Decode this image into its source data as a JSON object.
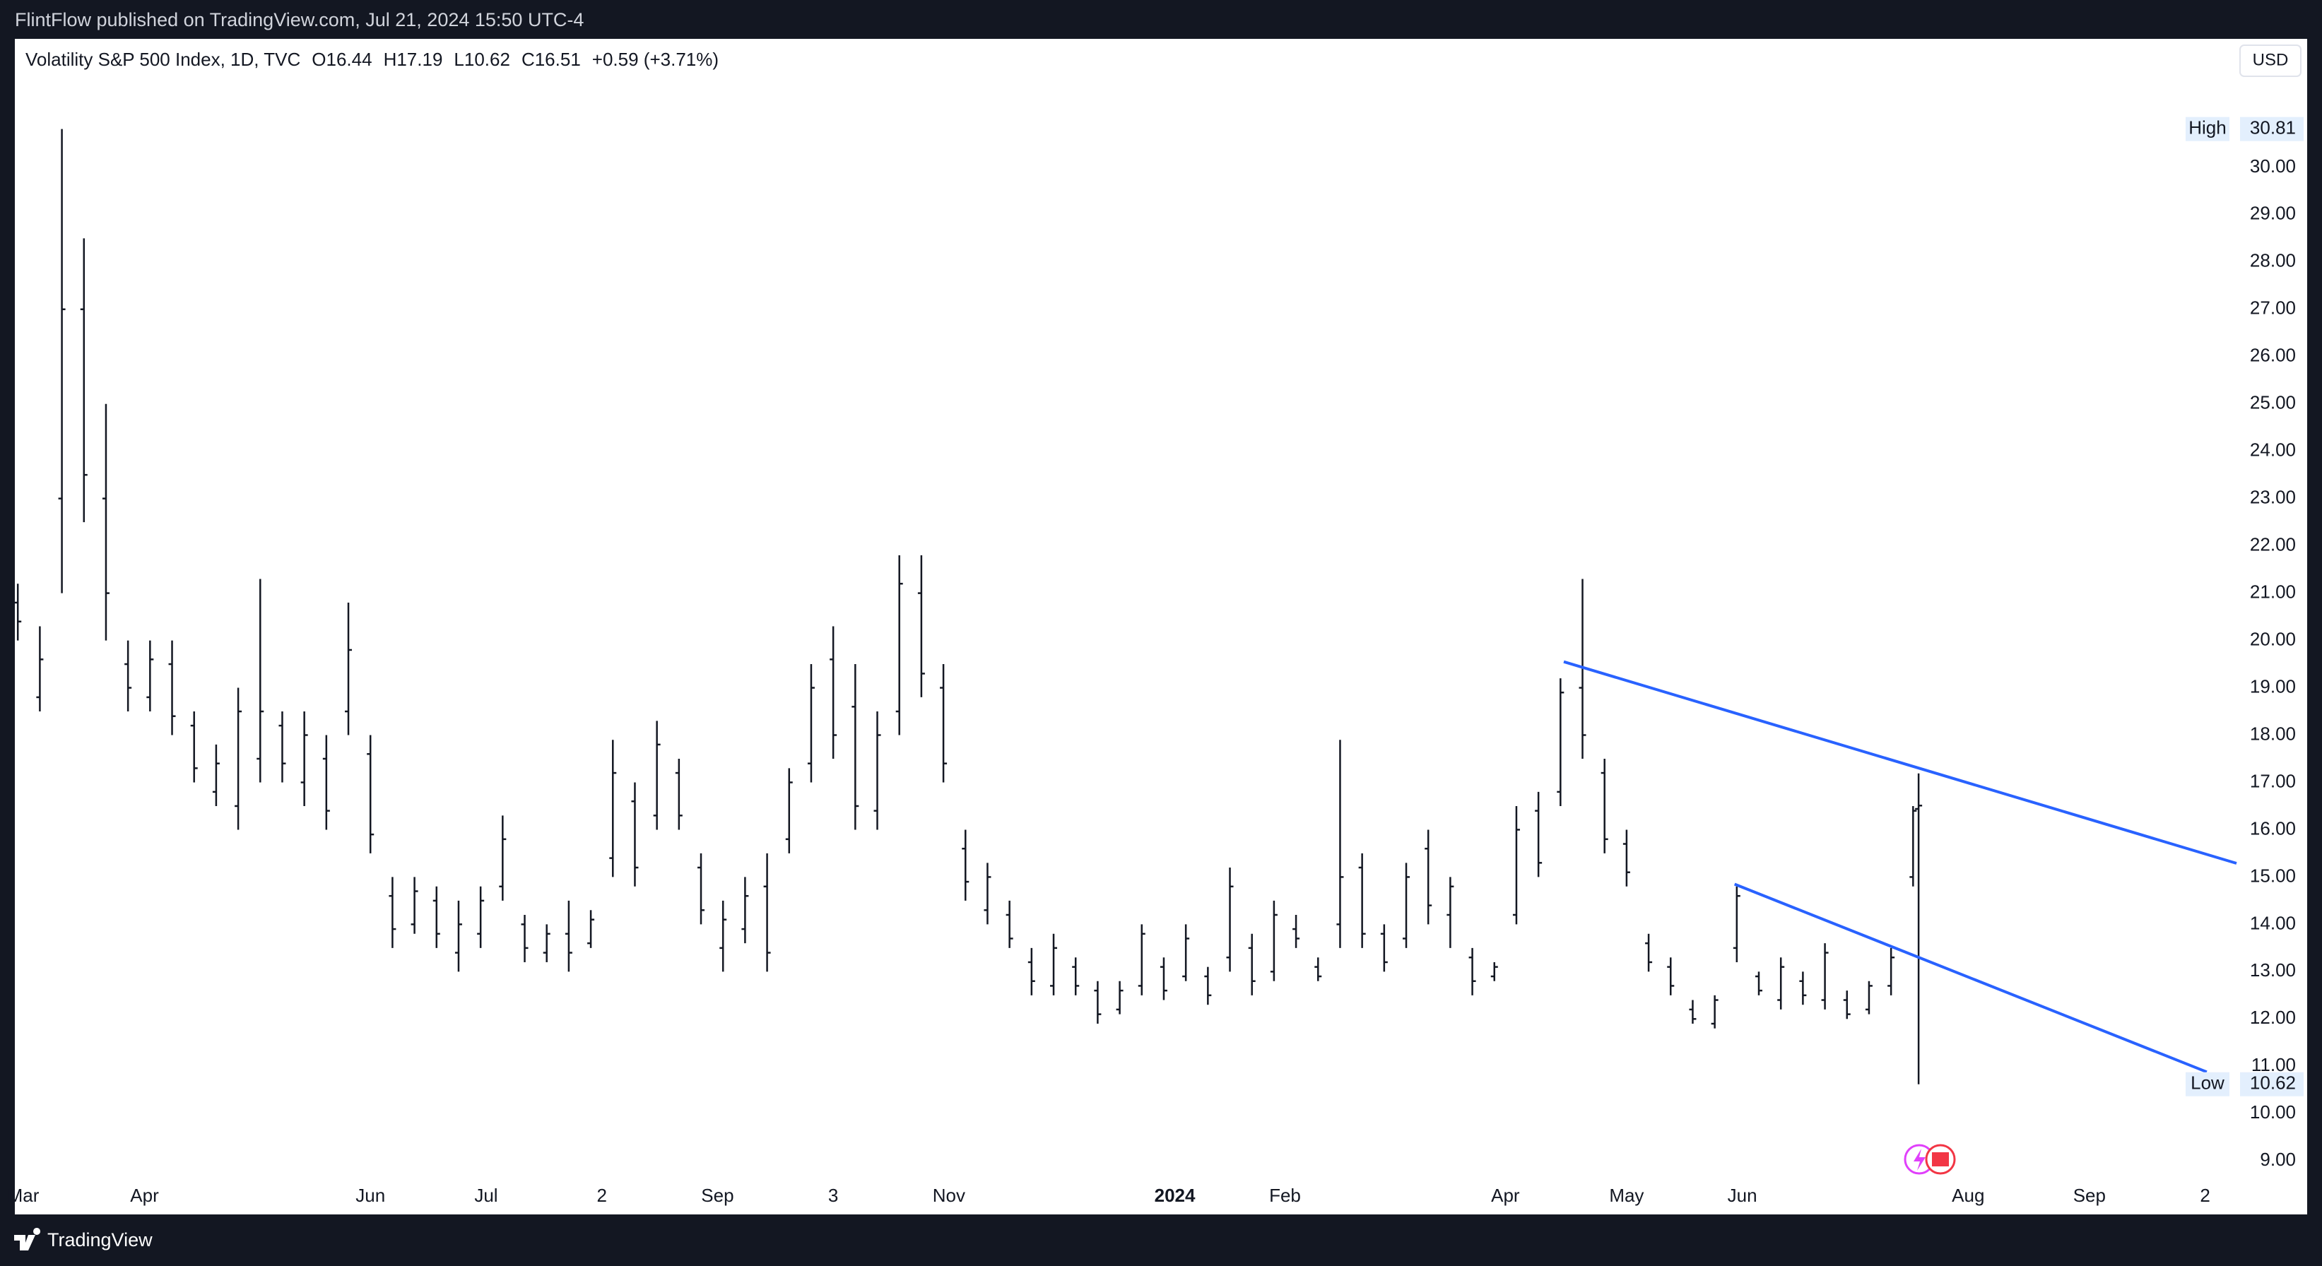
{
  "header": "FlintFlow published on TradingView.com, Jul 21, 2024 15:50 UTC-4",
  "footer": "TradingView",
  "chart_data": {
    "type": "ohlc",
    "title": "Volatility S&P 500 Index, 1D, TVC",
    "legend_values": [
      "O16.44",
      "H17.19",
      "L10.62",
      "C16.51",
      "+0.59 (+3.71%)"
    ],
    "currency": "USD",
    "color": "#131722",
    "x": [
      0,
      4,
      8,
      12,
      16,
      20,
      24,
      28,
      32,
      36,
      40,
      44,
      48,
      52,
      56,
      60,
      64,
      68,
      72,
      76,
      80,
      84,
      88,
      92,
      96,
      100,
      104,
      108,
      112,
      116,
      120,
      124,
      128,
      132,
      136,
      140,
      144,
      148,
      152,
      156,
      160,
      164,
      168,
      172,
      176,
      180,
      184,
      188,
      192,
      196,
      200,
      204,
      208,
      212,
      216,
      220,
      224,
      228,
      232,
      236,
      240,
      244,
      248,
      252,
      256,
      260,
      264,
      268,
      272,
      276,
      280,
      284,
      288,
      292,
      296,
      300,
      304,
      308,
      312,
      316,
      320,
      324,
      328,
      332,
      336,
      340,
      344,
      345
    ],
    "open": [
      20.8,
      18.8,
      23.0,
      27.0,
      23.0,
      19.5,
      18.8,
      19.5,
      18.2,
      16.8,
      16.5,
      17.5,
      18.2,
      17.0,
      17.5,
      18.5,
      17.6,
      14.6,
      14.0,
      14.5,
      13.4,
      13.8,
      14.8,
      14.0,
      13.4,
      13.8,
      13.6,
      15.4,
      16.6,
      16.3,
      17.2,
      15.2,
      13.5,
      13.9,
      14.8,
      15.8,
      17.4,
      19.6,
      18.6,
      16.4,
      18.5,
      21.0,
      19.0,
      15.6,
      14.3,
      14.2,
      13.2,
      12.7,
      13.1,
      12.6,
      12.2,
      12.7,
      13.1,
      12.9,
      12.9,
      13.3,
      13.5,
      13.0,
      13.9,
      13.1,
      14.0,
      15.2,
      13.8,
      13.7,
      15.6,
      14.2,
      13.3,
      12.9,
      14.2,
      16.4,
      16.8,
      19.0,
      17.2,
      15.7,
      13.6,
      13.1,
      12.2,
      11.9,
      13.5,
      12.9,
      12.4,
      12.8,
      12.4,
      12.4,
      12.2,
      12.7,
      15.0,
      16.44
    ],
    "high": [
      21.2,
      20.3,
      30.81,
      28.5,
      25.0,
      20.0,
      20.0,
      20.0,
      18.5,
      17.8,
      19.0,
      21.3,
      18.5,
      18.5,
      18.0,
      20.8,
      18.0,
      15.0,
      15.0,
      14.8,
      14.5,
      14.8,
      16.3,
      14.2,
      14.0,
      14.5,
      14.3,
      17.9,
      17.0,
      18.3,
      17.5,
      15.5,
      14.5,
      15.0,
      15.5,
      17.3,
      19.5,
      20.3,
      19.5,
      18.5,
      21.8,
      21.8,
      19.5,
      16.0,
      15.3,
      14.5,
      13.5,
      13.8,
      13.3,
      12.8,
      12.8,
      14.0,
      13.3,
      14.0,
      13.1,
      15.2,
      13.8,
      14.5,
      14.2,
      13.3,
      17.9,
      15.5,
      14.0,
      15.3,
      16.0,
      15.0,
      13.5,
      13.2,
      16.5,
      16.8,
      19.2,
      21.3,
      17.5,
      16.0,
      13.8,
      13.3,
      12.4,
      12.5,
      14.8,
      13.0,
      13.3,
      13.0,
      13.6,
      12.6,
      12.8,
      13.5,
      16.5,
      17.19
    ],
    "low": [
      20.0,
      18.5,
      21.0,
      22.5,
      20.0,
      18.5,
      18.5,
      18.0,
      17.0,
      16.5,
      16.0,
      17.0,
      17.0,
      16.5,
      16.0,
      18.0,
      15.5,
      13.5,
      13.8,
      13.5,
      13.0,
      13.5,
      14.5,
      13.2,
      13.2,
      13.0,
      13.5,
      15.0,
      14.8,
      16.0,
      16.0,
      14.0,
      13.0,
      13.6,
      13.0,
      15.5,
      17.0,
      17.5,
      16.0,
      16.0,
      18.0,
      18.8,
      17.0,
      14.5,
      14.0,
      13.5,
      12.5,
      12.5,
      12.5,
      11.9,
      12.1,
      12.5,
      12.4,
      12.8,
      12.3,
      13.0,
      12.5,
      12.8,
      13.5,
      12.8,
      13.5,
      13.5,
      13.0,
      13.5,
      14.0,
      13.5,
      12.5,
      12.8,
      14.0,
      15.0,
      16.5,
      17.5,
      15.5,
      14.8,
      13.0,
      12.5,
      11.9,
      11.8,
      13.2,
      12.5,
      12.2,
      12.3,
      12.2,
      12.0,
      12.1,
      12.5,
      14.8,
      10.62
    ],
    "close": [
      20.4,
      19.6,
      27.0,
      23.5,
      21.0,
      19.0,
      19.6,
      18.4,
      17.3,
      17.4,
      18.5,
      18.5,
      17.4,
      18.0,
      16.4,
      19.8,
      15.9,
      13.9,
      14.7,
      13.8,
      14.0,
      14.5,
      15.8,
      13.5,
      13.8,
      13.4,
      14.1,
      17.2,
      15.2,
      17.8,
      16.3,
      14.3,
      14.1,
      14.6,
      13.4,
      17.0,
      19.0,
      18.0,
      16.5,
      18.0,
      21.2,
      19.3,
      17.4,
      14.9,
      15.0,
      13.7,
      12.8,
      13.5,
      12.7,
      12.1,
      12.6,
      13.8,
      12.6,
      13.7,
      12.5,
      14.8,
      12.8,
      14.2,
      13.7,
      12.9,
      15.0,
      13.8,
      13.2,
      15.0,
      14.4,
      14.8,
      12.8,
      13.1,
      16.0,
      15.3,
      18.9,
      18.0,
      15.8,
      15.1,
      13.2,
      12.7,
      12.0,
      12.4,
      14.6,
      12.6,
      13.1,
      12.5,
      13.4,
      12.1,
      12.7,
      13.3,
      16.4,
      16.51
    ],
    "xlim": [
      -0.54,
      402.7
    ],
    "xticks": [
      {
        "value": 1,
        "label": "Mar"
      },
      {
        "value": 23,
        "label": "Apr"
      },
      {
        "value": 64,
        "label": "Jun"
      },
      {
        "value": 85,
        "label": "Jul"
      },
      {
        "value": 106,
        "label": "2"
      },
      {
        "value": 127,
        "label": "Sep"
      },
      {
        "value": 148,
        "label": "3"
      },
      {
        "value": 169,
        "label": "Nov"
      },
      {
        "value": 210,
        "label": "2024",
        "bold": true
      },
      {
        "value": 230,
        "label": "Feb"
      },
      {
        "value": 270,
        "label": "Apr"
      },
      {
        "value": 292,
        "label": "May"
      },
      {
        "value": 313,
        "label": "Jun"
      },
      {
        "value": 354,
        "label": "Aug"
      },
      {
        "value": 376,
        "label": "Sep"
      },
      {
        "value": 397,
        "label": "2"
      }
    ],
    "ylim": [
      8.63,
      31.82
    ],
    "yticks": [
      {
        "value": 9,
        "label": "9.00"
      },
      {
        "value": 10,
        "label": "10.00"
      },
      {
        "value": 11,
        "label": "11.00"
      },
      {
        "value": 12,
        "label": "12.00"
      },
      {
        "value": 13,
        "label": "13.00"
      },
      {
        "value": 14,
        "label": "14.00"
      },
      {
        "value": 15,
        "label": "15.00"
      },
      {
        "value": 16,
        "label": "16.00"
      },
      {
        "value": 17,
        "label": "17.00"
      },
      {
        "value": 18,
        "label": "18.00"
      },
      {
        "value": 19,
        "label": "19.00"
      },
      {
        "value": 20,
        "label": "20.00"
      },
      {
        "value": 21,
        "label": "21.00"
      },
      {
        "value": 22,
        "label": "22.00"
      },
      {
        "value": 23,
        "label": "23.00"
      },
      {
        "value": 24,
        "label": "24.00"
      },
      {
        "value": 25,
        "label": "25.00"
      },
      {
        "value": 26,
        "label": "26.00"
      },
      {
        "value": 27,
        "label": "27.00"
      },
      {
        "value": 28,
        "label": "28.00"
      },
      {
        "value": 29,
        "label": "29.00"
      },
      {
        "value": 30,
        "label": "30.00"
      }
    ],
    "high_marker": {
      "label": "High",
      "value": 30.81
    },
    "low_marker": {
      "label": "Low",
      "value": 10.62
    },
    "trendlines": [
      {
        "color": "#2962ff",
        "x": [
          280.6,
          402.7
        ],
        "y": [
          19.55,
          15.29
        ]
      },
      {
        "color": "#2962ff",
        "x": [
          311.6,
          397.3
        ],
        "y": [
          14.85,
          10.88
        ]
      }
    ]
  }
}
